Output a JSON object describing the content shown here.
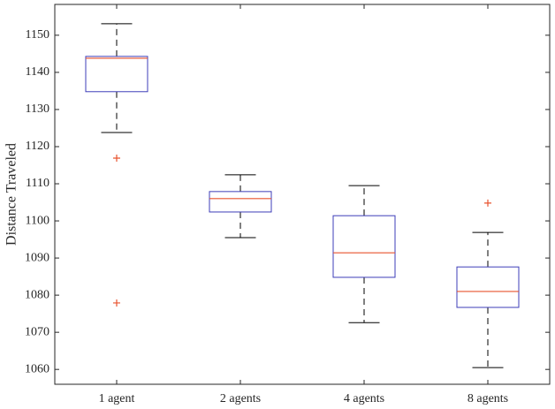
{
  "chart_data": {
    "type": "box",
    "y_label": "Distance Traveled",
    "categories": [
      "1 agent",
      "2 agents",
      "4 agents",
      "8 agents"
    ],
    "boxes": [
      {
        "whisker_low": 1123.8,
        "q1": 1134.8,
        "median": 1143.8,
        "q3": 1144.3,
        "whisker_high": 1153.1,
        "outliers": [
          1116.9,
          1077.9
        ]
      },
      {
        "whisker_low": 1095.5,
        "q1": 1102.4,
        "median": 1106.0,
        "q3": 1107.9,
        "whisker_high": 1112.4,
        "outliers": []
      },
      {
        "whisker_low": 1072.6,
        "q1": 1084.8,
        "median": 1091.4,
        "q3": 1101.4,
        "whisker_high": 1109.5,
        "outliers": []
      },
      {
        "whisker_low": 1060.5,
        "q1": 1076.7,
        "median": 1081.0,
        "q3": 1087.6,
        "whisker_high": 1096.9,
        "outliers": [
          1104.8
        ]
      }
    ],
    "box_color": "#3d3db8",
    "median_color": "#e8532f",
    "outlier_color": "#e8532f",
    "whisker_color": "#000000",
    "ylim": [
      1056,
      1158.3
    ],
    "yticks": [
      1060,
      1070,
      1080,
      1090,
      1100,
      1110,
      1120,
      1130,
      1140,
      1150
    ]
  }
}
